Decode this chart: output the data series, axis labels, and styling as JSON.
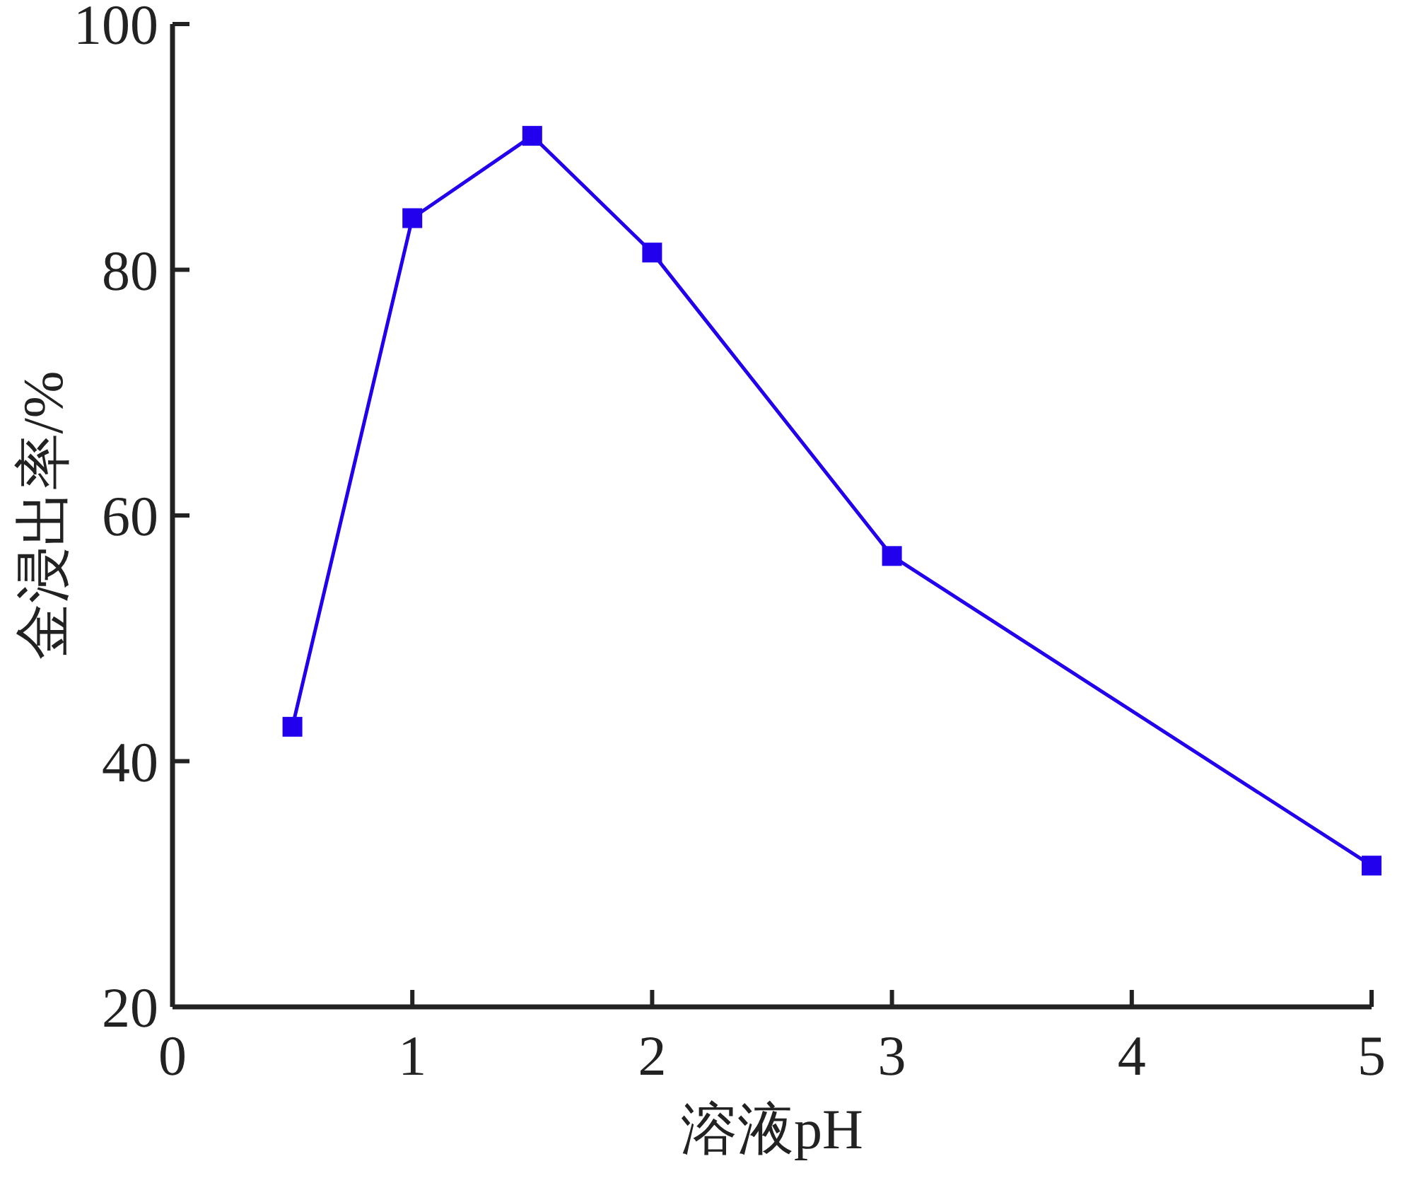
{
  "chart_data": {
    "type": "line",
    "xlabel": "溶液pH",
    "ylabel": "金浸出率/%",
    "x": [
      0.5,
      1,
      1.5,
      2,
      3,
      5
    ],
    "series": [
      {
        "color": "#2200ee",
        "values": [
          42.8,
          84.2,
          90.9,
          81.4,
          56.7,
          31.5
        ]
      }
    ],
    "xlim": [
      0,
      5
    ],
    "xticks": [
      0,
      1,
      2,
      3,
      4,
      5
    ],
    "ylim": [
      20,
      100
    ],
    "yticks": [
      20,
      40,
      60,
      80,
      100
    ],
    "marker": "square",
    "line_style": "solid",
    "grid": false
  }
}
